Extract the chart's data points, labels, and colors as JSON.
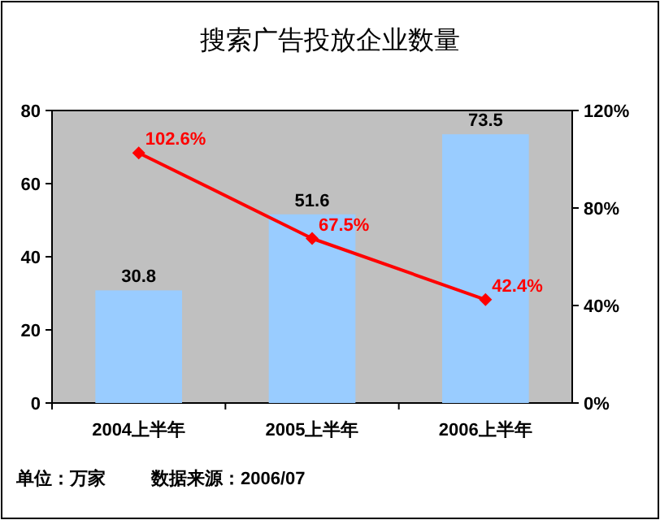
{
  "chart_data": {
    "type": "bar",
    "title": "搜索广告投放企业数量",
    "categories": [
      "2004上半年",
      "2005上半年",
      "2006上半年"
    ],
    "series": [
      {
        "color": "#99ccff",
        "values": [
          30.8,
          51.6,
          73.5
        ],
        "value_labels": [
          "30.8",
          "51.6",
          "73.5"
        ]
      },
      {
        "type": "line",
        "axis": "y2",
        "color": "#ff0000",
        "marker": "diamond",
        "values": [
          102.6,
          67.5,
          42.4
        ],
        "value_labels": [
          "102.6%",
          "67.5%",
          "42.4%"
        ]
      }
    ],
    "ylim": [
      0,
      80
    ],
    "yticks": [
      0,
      20,
      40,
      60,
      80
    ],
    "y2lim": [
      0,
      120
    ],
    "y2ticks": [
      {
        "value": 0,
        "label": "0%"
      },
      {
        "value": 40,
        "label": "40%"
      },
      {
        "value": 80,
        "label": "80%"
      },
      {
        "value": 120,
        "label": "120%"
      }
    ],
    "grid": false,
    "annotations": [
      "单位：万家",
      "数据来源：2006/07"
    ]
  }
}
